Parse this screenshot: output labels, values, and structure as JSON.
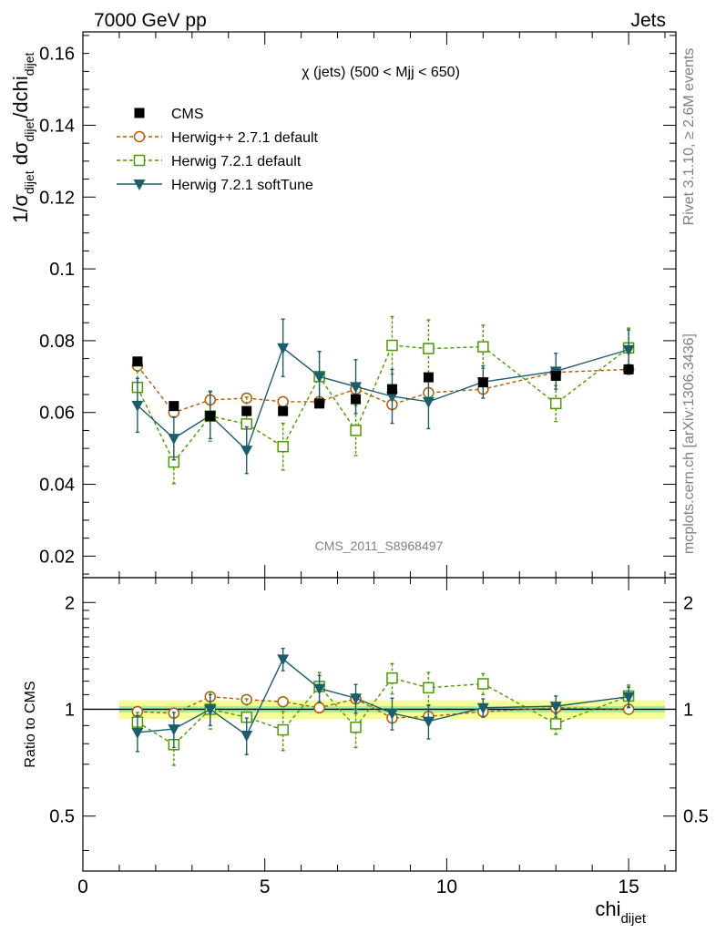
{
  "header": {
    "left": "7000 GeV pp",
    "right": "Jets"
  },
  "side_labels": {
    "rivet": "Rivet 3.1.10, ≥ 2.6M events",
    "mcplots": "mcplots.cern.ch [arXiv:1306.3436]"
  },
  "chart_data": {
    "type": "scatter",
    "title": "χ (jets) (500 < Mjj <  650)",
    "watermark": "CMS_2011_S8968497",
    "xlabel": "chi",
    "xlabel_sub": "dijet",
    "ylabel": {
      "prefix": "1/σ",
      "sub1": "dijet",
      "mid": " dσ",
      "sub2": "dijet",
      "suffix": "/dchi",
      "sub3": "dijet"
    },
    "ratio_ylabel": "Ratio to CMS",
    "xlim": [
      0,
      16.3
    ],
    "ylim": [
      0.014,
      0.166
    ],
    "ratio_ylim": [
      0.35,
      2.35
    ],
    "x_ticks": [
      "0",
      "5",
      "10",
      "15"
    ],
    "y_ticks": [
      "0.02",
      "0.04",
      "0.06",
      "0.08",
      "0.1",
      "0.12",
      "0.14",
      "0.16"
    ],
    "ratio_ticks": [
      "0.5",
      "1",
      "2"
    ],
    "x": [
      1.5,
      2.5,
      3.5,
      4.5,
      5.5,
      6.5,
      7.5,
      8.5,
      9.5,
      11,
      13,
      15
    ],
    "series": [
      {
        "name": "CMS",
        "color": "#000000",
        "marker": "filled-square",
        "line": "none",
        "values": [
          0.0742,
          0.0618,
          0.059,
          0.0604,
          0.0604,
          0.0625,
          0.0637,
          0.0665,
          0.0698,
          0.0684,
          0.0702,
          0.072
        ],
        "errors": [
          0.001,
          0.001,
          0.001,
          0.001,
          0.001,
          0.001,
          0.001,
          0.001,
          0.001,
          0.001,
          0.001,
          0.001
        ]
      },
      {
        "name": "Herwig++ 2.7.1 default",
        "color": "#b35900",
        "marker": "open-circle",
        "line": "dashed",
        "values": [
          0.073,
          0.06,
          0.0635,
          0.064,
          0.063,
          0.063,
          0.0665,
          0.0622,
          0.0655,
          0.0665,
          0.0712,
          0.072
        ],
        "errors": [
          0.0005,
          0.0005,
          0.0005,
          0.0005,
          0.0005,
          0.0005,
          0.0005,
          0.0005,
          0.0005,
          0.0005,
          0.0005,
          0.0005
        ]
      },
      {
        "name": "Herwig 7.2.1 default",
        "color": "#4c9900",
        "marker": "open-square",
        "line": "dashed",
        "values": [
          0.067,
          0.0462,
          0.059,
          0.0568,
          0.0505,
          0.07,
          0.055,
          0.0787,
          0.0778,
          0.0783,
          0.0625,
          0.078
        ],
        "errors": [
          0.0045,
          0.006,
          0.007,
          0.0075,
          0.0065,
          0.007,
          0.007,
          0.008,
          0.008,
          0.006,
          0.005,
          0.0055
        ]
      },
      {
        "name": "Herwig 7.2.1 softTune",
        "color": "#1a5e6e",
        "marker": "filled-triangle-down",
        "line": "solid",
        "values": [
          0.062,
          0.0528,
          0.0592,
          0.0495,
          0.078,
          0.07,
          0.0672,
          0.0645,
          0.063,
          0.0685,
          0.0715,
          0.0775
        ],
        "errors": [
          0.0075,
          0.006,
          0.0065,
          0.0065,
          0.008,
          0.007,
          0.0075,
          0.0075,
          0.0075,
          0.0045,
          0.005,
          0.0055
        ]
      }
    ],
    "ratio": {
      "band_inner": 0.02,
      "band_outer": 0.06,
      "series": [
        {
          "name": "Herwig++ 2.7.1 default",
          "values": [
            0.985,
            0.975,
            1.085,
            1.065,
            1.05,
            1.01,
            1.07,
            0.945,
            0.955,
            0.985,
            1.01,
            1.0
          ],
          "errors": [
            0.01,
            0.01,
            0.01,
            0.01,
            0.01,
            0.01,
            0.01,
            0.01,
            0.01,
            0.01,
            0.01,
            0.01
          ]
        },
        {
          "name": "Herwig 7.2.1 default",
          "values": [
            0.92,
            0.795,
            1.0,
            0.95,
            0.875,
            1.16,
            0.89,
            1.225,
            1.15,
            1.18,
            0.91,
            1.09
          ],
          "errors": [
            0.06,
            0.1,
            0.12,
            0.12,
            0.11,
            0.11,
            0.11,
            0.12,
            0.12,
            0.08,
            0.06,
            0.08
          ]
        },
        {
          "name": "Herwig 7.2.1 softTune",
          "values": [
            0.86,
            0.88,
            1.0,
            0.845,
            1.385,
            1.145,
            1.075,
            0.975,
            0.925,
            1.01,
            1.02,
            1.085
          ],
          "errors": [
            0.1,
            0.1,
            0.1,
            0.1,
            0.1,
            0.1,
            0.1,
            0.1,
            0.1,
            0.06,
            0.07,
            0.07
          ]
        }
      ]
    }
  }
}
